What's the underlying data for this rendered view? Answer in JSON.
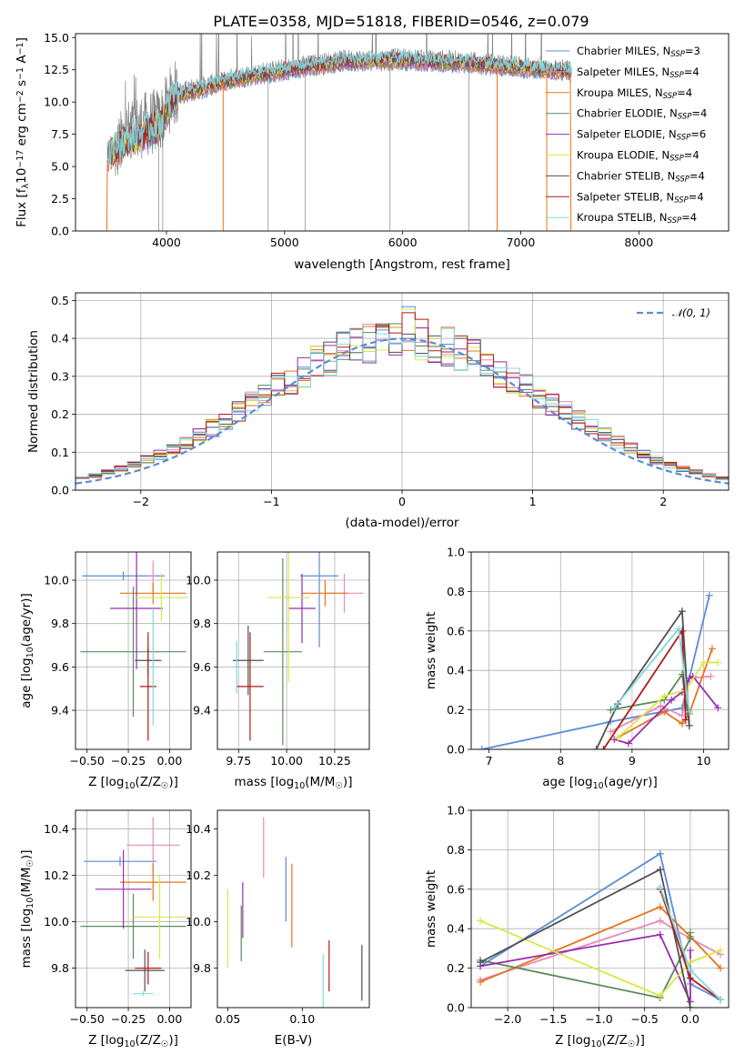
{
  "figure_title": "PLATE=0358, MJD=51818, FIBERID=0546, z=0.079",
  "series": [
    {
      "name": "Chabrier MILES",
      "nssp": "3",
      "color": "#5b8bd6"
    },
    {
      "name": "Salpeter MILES",
      "nssp": "4",
      "color": "#e88ab8"
    },
    {
      "name": "Kroupa MILES",
      "nssp": "4",
      "color": "#e8731a"
    },
    {
      "name": "Chabrier ELODIE",
      "nssp": "4",
      "color": "#5a8a5a"
    },
    {
      "name": "Salpeter ELODIE",
      "nssp": "6",
      "color": "#9a2bb0"
    },
    {
      "name": "Kroupa ELODIE",
      "nssp": "4",
      "color": "#d8e845"
    },
    {
      "name": "Chabrier STELIB",
      "nssp": "4",
      "color": "#505050"
    },
    {
      "name": "Salpeter STELIB",
      "nssp": "4",
      "color": "#b01818"
    },
    {
      "name": "Kroupa STELIB",
      "nssp": "4",
      "color": "#80d8e0"
    }
  ],
  "chart_data": [
    {
      "id": "spectrum",
      "type": "line",
      "xlabel": "wavelength [Angstrom, rest frame]",
      "ylabel_parts": [
        "Flux [f",
        "λ",
        "10",
        "−17",
        " erg cm",
        "−2",
        " s",
        "−1",
        " A",
        "−1",
        "]"
      ],
      "xlim": [
        3230,
        8760
      ],
      "ylim": [
        0,
        15.3
      ],
      "xticks": [
        4000,
        5000,
        6000,
        7000,
        8000
      ],
      "yticks": [
        0.0,
        2.5,
        5.0,
        7.5,
        10.0,
        12.5,
        15.0
      ],
      "ytick_labels": [
        "0.0",
        "2.5",
        "5.0",
        "7.5",
        "10.0",
        "12.5",
        "15.0"
      ],
      "data_trace": {
        "color": "#808080",
        "x_range": [
          3560,
          7420
        ],
        "continuum": [
          [
            3560,
            5.8
          ],
          [
            3650,
            7.5
          ],
          [
            3800,
            8.2
          ],
          [
            3950,
            8.6
          ],
          [
            4050,
            10.6
          ],
          [
            4300,
            11.1
          ],
          [
            4600,
            11.9
          ],
          [
            5000,
            12.5
          ],
          [
            5500,
            13.2
          ],
          [
            6000,
            13.3
          ],
          [
            6500,
            13.1
          ],
          [
            7000,
            12.7
          ],
          [
            7420,
            12.4
          ]
        ]
      },
      "model_traces": {
        "x_range": [
          3500,
          7430
        ],
        "continuum": [
          [
            3500,
            5.9
          ],
          [
            3650,
            6.8
          ],
          [
            3800,
            7.5
          ],
          [
            3950,
            8.1
          ],
          [
            4050,
            10.4
          ],
          [
            4300,
            11.0
          ],
          [
            4600,
            11.8
          ],
          [
            5000,
            12.4
          ],
          [
            5500,
            13.1
          ],
          [
            6000,
            13.2
          ],
          [
            6500,
            13.0
          ],
          [
            7000,
            12.6
          ],
          [
            7430,
            12.3
          ]
        ]
      },
      "legend_position": "upper-right"
    },
    {
      "id": "residuals",
      "type": "histogram",
      "xlabel": "(data-model)/error",
      "ylabel": "Normed distribution",
      "xlim": [
        -2.5,
        2.5
      ],
      "ylim": [
        0,
        0.52
      ],
      "xticks": [
        -2,
        -1,
        0,
        1,
        2
      ],
      "xtick_labels": [
        "−2",
        "−1",
        "0",
        "1",
        "2"
      ],
      "yticks": [
        0.0,
        0.1,
        0.2,
        0.3,
        0.4,
        0.5
      ],
      "ytick_labels": [
        "0.0",
        "0.1",
        "0.2",
        "0.3",
        "0.4",
        "0.5"
      ],
      "bin_width": 0.1,
      "bin_start": -2.5,
      "reference_label": "𝒩(0, 1)",
      "reference_color": "#5b8bd6",
      "legend_position": "upper-right",
      "grid": true
    },
    {
      "id": "age-vs-Z",
      "type": "errorbar",
      "xlabel_parts": [
        "Z [log",
        "10",
        "(Z/Z",
        "☉",
        ")]"
      ],
      "ylabel_parts": [
        "age  [log",
        "10",
        "(age/yr)]"
      ],
      "xlim": [
        -0.57,
        0.13
      ],
      "ylim": [
        9.22,
        10.13
      ],
      "xticks": [
        -0.5,
        -0.25,
        0.0
      ],
      "xtick_labels": [
        "−0.50",
        "−0.25",
        "0.00"
      ],
      "yticks": [
        9.4,
        9.6,
        9.8,
        10.0
      ],
      "ytick_labels": [
        "9.4",
        "9.6",
        "9.8",
        "10.0"
      ],
      "grid": true,
      "points": [
        {
          "x": -0.28,
          "y": 10.02,
          "xerr": 0.25,
          "yerr": 0.02
        },
        {
          "x": -0.1,
          "y": 10.02,
          "xerr": 0.02,
          "yerr": 0.07
        },
        {
          "x": -0.1,
          "y": 9.94,
          "xerr": 0.2,
          "yerr": 0.05
        },
        {
          "x": -0.22,
          "y": 9.67,
          "xerr": 0.32,
          "yerr": 0.3
        },
        {
          "x": -0.2,
          "y": 9.87,
          "xerr": 0.16,
          "yerr": 0.28
        },
        {
          "x": -0.05,
          "y": 9.92,
          "xerr": 0.16,
          "yerr": 0.11
        },
        {
          "x": -0.13,
          "y": 9.63,
          "xerr": 0.08,
          "yerr": 0.06
        },
        {
          "x": -0.13,
          "y": 9.51,
          "xerr": 0.05,
          "yerr": 0.25
        },
        {
          "x": -0.1,
          "y": 9.6,
          "xerr": 0.03,
          "yerr": 0.27
        }
      ]
    },
    {
      "id": "age-vs-mass",
      "type": "errorbar",
      "xlabel_parts": [
        "mass [log",
        "10",
        "(M/M",
        "☉",
        ")]"
      ],
      "ylabel_parts": [],
      "xlim": [
        9.64,
        10.43
      ],
      "ylim": [
        9.22,
        10.13
      ],
      "xticks": [
        9.75,
        10.0,
        10.25
      ],
      "xtick_labels": [
        "9.75",
        "10.00",
        "10.25"
      ],
      "yticks": [
        9.4,
        9.6,
        9.8,
        10.0
      ],
      "ytick_labels": [
        "9.4",
        "9.6",
        "9.8",
        "10.0"
      ],
      "grid": true,
      "points": [
        {
          "x": 10.17,
          "y": 10.02,
          "xerr": 0.1,
          "yerr": 0.33
        },
        {
          "x": 10.3,
          "y": 9.94,
          "xerr": 0.1,
          "yerr": 0.09
        },
        {
          "x": 10.2,
          "y": 9.94,
          "xerr": 0.12,
          "yerr": 0.06
        },
        {
          "x": 9.98,
          "y": 9.67,
          "xerr": 0.1,
          "yerr": 0.43
        },
        {
          "x": 10.08,
          "y": 9.87,
          "xerr": 0.07,
          "yerr": 0.16
        },
        {
          "x": 10.01,
          "y": 9.92,
          "xerr": 0.11,
          "yerr": 0.39
        },
        {
          "x": 9.8,
          "y": 9.63,
          "xerr": 0.08,
          "yerr": 0.16
        },
        {
          "x": 9.81,
          "y": 9.51,
          "xerr": 0.07,
          "yerr": 0.25
        },
        {
          "x": 9.74,
          "y": 9.6,
          "xerr": 0.02,
          "yerr": 0.12
        }
      ]
    },
    {
      "id": "weight-vs-age",
      "type": "line",
      "xlabel_parts": [
        "age  [log",
        "10",
        "(age/yr)]"
      ],
      "ylabel": "mass weight",
      "xlim": [
        6.75,
        10.35
      ],
      "ylim": [
        0,
        1.0
      ],
      "xticks": [
        7,
        8,
        9,
        10
      ],
      "xtick_labels": [
        "7",
        "8",
        "9",
        "10"
      ],
      "yticks": [
        0.0,
        0.2,
        0.4,
        0.6,
        0.8,
        1.0
      ],
      "ytick_labels": [
        "0.0",
        "0.2",
        "0.4",
        "0.6",
        "0.8",
        "1.0"
      ],
      "grid": true,
      "marker": "+",
      "series": [
        {
          "x": [
            6.9,
            8.7,
            9.7,
            10.08
          ],
          "y": [
            0.0,
            0.14,
            0.21,
            0.78
          ]
        },
        {
          "x": [
            8.7,
            9.4,
            9.7,
            9.8,
            10.1
          ],
          "y": [
            0.09,
            0.22,
            0.17,
            0.36,
            0.37
          ]
        },
        {
          "x": [
            8.8,
            9.45,
            9.7,
            9.8,
            10.12
          ],
          "y": [
            0.06,
            0.19,
            0.13,
            0.18,
            0.51
          ]
        },
        {
          "x": [
            8.7,
            9.45,
            9.7,
            9.8
          ],
          "y": [
            0.2,
            0.25,
            0.38,
            0.12
          ]
        },
        {
          "x": [
            8.75,
            8.95,
            9.55,
            9.7,
            9.8,
            9.85,
            10.2
          ],
          "y": [
            0.05,
            0.03,
            0.25,
            0.29,
            0.36,
            0.37,
            0.21
          ]
        },
        {
          "x": [
            8.8,
            9.45,
            9.75,
            10.0,
            10.2
          ],
          "y": [
            0.06,
            0.27,
            0.3,
            0.44,
            0.44
          ]
        },
        {
          "x": [
            8.5,
            8.8,
            9.7,
            9.8
          ],
          "y": [
            0.0,
            0.23,
            0.7,
            0.12
          ]
        },
        {
          "x": [
            8.6,
            9.7,
            9.75
          ],
          "y": [
            0.0,
            0.6,
            0.15
          ]
        },
        {
          "x": [
            8.75,
            9.65,
            9.8
          ],
          "y": [
            0.21,
            0.61,
            0.19
          ]
        }
      ]
    },
    {
      "id": "mass-vs-Z",
      "type": "errorbar",
      "xlabel_parts": [
        "Z [log",
        "10",
        "(Z/Z",
        "☉",
        ")]"
      ],
      "ylabel_parts": [
        "mass [log",
        "10",
        "(M/M",
        "☉",
        ")]"
      ],
      "xlim": [
        -0.57,
        0.13
      ],
      "ylim": [
        9.63,
        10.48
      ],
      "xticks": [
        -0.5,
        -0.25,
        0.0
      ],
      "xtick_labels": [
        "−0.50",
        "−0.25",
        "0.00"
      ],
      "yticks": [
        9.8,
        10.0,
        10.2,
        10.4
      ],
      "ytick_labels": [
        "9.8",
        "10.0",
        "10.2",
        "10.4"
      ],
      "grid": true,
      "points": [
        {
          "x": -0.3,
          "y": 10.26,
          "xerr": 0.22,
          "yerr": 0.02
        },
        {
          "x": -0.1,
          "y": 10.33,
          "xerr": 0.16,
          "yerr": 0.12
        },
        {
          "x": -0.1,
          "y": 10.17,
          "xerr": 0.2,
          "yerr": 0.08
        },
        {
          "x": -0.22,
          "y": 9.98,
          "xerr": 0.32,
          "yerr": 0.14
        },
        {
          "x": -0.28,
          "y": 10.14,
          "xerr": 0.17,
          "yerr": 0.17
        },
        {
          "x": -0.06,
          "y": 10.02,
          "xerr": 0.16,
          "yerr": 0.18
        },
        {
          "x": -0.15,
          "y": 9.79,
          "xerr": 0.12,
          "yerr": 0.09
        },
        {
          "x": -0.13,
          "y": 9.8,
          "xerr": 0.08,
          "yerr": 0.07
        },
        {
          "x": -0.16,
          "y": 9.69,
          "xerr": 0.06,
          "yerr": 0.01
        }
      ]
    },
    {
      "id": "mass-vs-ebv",
      "type": "errorbar",
      "xlabel": "E(B-V)",
      "ylabel_parts": [],
      "xlim": [
        0.043,
        0.145
      ],
      "ylim": [
        9.63,
        10.48
      ],
      "xticks": [
        0.05,
        0.1
      ],
      "xtick_labels": [
        "0.05",
        "0.10"
      ],
      "yticks": [
        9.8,
        10.0,
        10.2,
        10.4
      ],
      "ytick_labels": [
        "9.8",
        "10.0",
        "10.2",
        "10.4"
      ],
      "grid": false,
      "points": [
        {
          "x": 0.089,
          "y": 10.14,
          "xerr": 0,
          "yerr": 0.14
        },
        {
          "x": 0.074,
          "y": 10.32,
          "xerr": 0,
          "yerr": 0.13
        },
        {
          "x": 0.093,
          "y": 10.07,
          "xerr": 0,
          "yerr": 0.18
        },
        {
          "x": 0.059,
          "y": 9.95,
          "xerr": 0,
          "yerr": 0.12
        },
        {
          "x": 0.06,
          "y": 10.05,
          "xerr": 0,
          "yerr": 0.12
        },
        {
          "x": 0.05,
          "y": 9.97,
          "xerr": 0,
          "yerr": 0.17
        },
        {
          "x": 0.14,
          "y": 9.78,
          "xerr": 0,
          "yerr": 0.12
        },
        {
          "x": 0.118,
          "y": 9.81,
          "xerr": 0,
          "yerr": 0.11
        },
        {
          "x": 0.114,
          "y": 9.73,
          "xerr": 0,
          "yerr": 0.13
        }
      ]
    },
    {
      "id": "weight-vs-Z",
      "type": "line",
      "xlabel_parts": [
        "Z [log",
        "10",
        "(Z/Z",
        "☉",
        ")]"
      ],
      "ylabel": "mass weight",
      "xlim": [
        -2.4,
        0.42
      ],
      "ylim": [
        0,
        1.0
      ],
      "xticks": [
        -2.0,
        -1.5,
        -1.0,
        -0.5,
        0.0
      ],
      "xtick_labels": [
        "−2.0",
        "−1.5",
        "−1.0",
        "−0.5",
        "0.0"
      ],
      "yticks": [
        0.0,
        0.2,
        0.4,
        0.6,
        0.8,
        1.0
      ],
      "ytick_labels": [
        "0.0",
        "0.2",
        "0.4",
        "0.6",
        "0.8",
        "1.0"
      ],
      "grid": true,
      "marker": "+",
      "series": [
        {
          "x": [
            -2.3,
            -0.33,
            0.0,
            0.33
          ],
          "y": [
            0.21,
            0.78,
            0.12,
            0.04
          ]
        },
        {
          "x": [
            -2.3,
            -0.33,
            0.0,
            0.33
          ],
          "y": [
            0.14,
            0.44,
            0.35,
            0.27
          ]
        },
        {
          "x": [
            -2.3,
            -0.33,
            0.0,
            0.33
          ],
          "y": [
            0.13,
            0.51,
            0.36,
            0.2
          ]
        },
        {
          "x": [
            -2.3,
            -0.33,
            0.0,
            0.0
          ],
          "y": [
            0.24,
            0.05,
            0.35,
            0.38
          ]
        },
        {
          "x": [
            -2.3,
            -0.33,
            0.0,
            0.0
          ],
          "y": [
            0.21,
            0.37,
            0.03,
            0.29
          ]
        },
        {
          "x": [
            -2.3,
            -0.33,
            0.0,
            0.33
          ],
          "y": [
            0.44,
            0.06,
            0.23,
            0.29
          ]
        },
        {
          "x": [
            -2.3,
            -0.33,
            0.0
          ],
          "y": [
            0.23,
            0.7,
            0.0
          ]
        },
        {
          "x": [
            -0.33,
            0.0,
            0.33
          ],
          "y": [
            0.6,
            0.15,
            0.04
          ]
        },
        {
          "x": [
            -0.33,
            0.0,
            0.33
          ],
          "y": [
            0.61,
            0.19,
            0.04
          ]
        }
      ]
    }
  ]
}
